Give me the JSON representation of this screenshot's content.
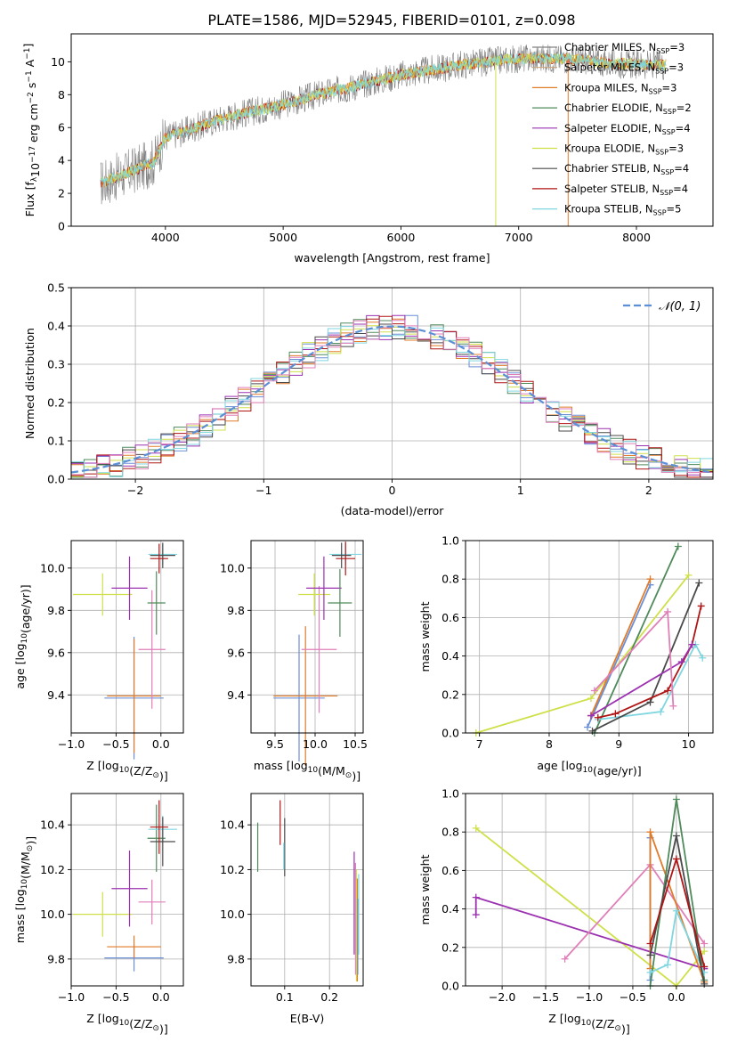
{
  "figure": {
    "title": "PLATE=1586, MJD=52945, FIBERID=0101, z=0.098"
  },
  "colors": {
    "Chabrier MILES": "#6a8fd6",
    "Salpeter MILES": "#c9a57a",
    "Kroupa MILES": "#e07b2a",
    "Chabrier ELODIE": "#4f8a5b",
    "Salpeter ELODIE": "#9b30b0",
    "Kroupa ELODIE": "#cfe04a",
    "Chabrier STELIB": "#4a4a4a",
    "Salpeter STELIB": "#b01515",
    "Kroupa STELIB": "#7fd6e0",
    "pink": "#e07fb8",
    "data": "#808080",
    "grid": "#b0b0b0"
  },
  "chart_data": [
    {
      "id": "spectrum",
      "type": "line",
      "title": "PLATE=1586, MJD=52945, FIBERID=0101, z=0.098",
      "xlabel": "wavelength [Angstrom, rest frame]",
      "ylabel_parts": [
        "Flux [f",
        "λ",
        "10",
        "−17",
        " erg cm",
        "−2",
        " s",
        "−1",
        " A",
        "−1",
        "]"
      ],
      "xlim": [
        3200,
        8650
      ],
      "ylim": [
        0,
        11.7
      ],
      "xticks": [
        4000,
        5000,
        6000,
        7000,
        8000
      ],
      "yticks": [
        0,
        2,
        4,
        6,
        8,
        10
      ],
      "grid": false,
      "legend_position": "top-right",
      "continuum_knots": [
        [
          3450,
          2.6
        ],
        [
          3700,
          3.3
        ],
        [
          3900,
          3.9
        ],
        [
          4000,
          5.4
        ],
        [
          4300,
          6.1
        ],
        [
          4500,
          6.6
        ],
        [
          5000,
          7.4
        ],
        [
          5300,
          8.0
        ],
        [
          5600,
          8.5
        ],
        [
          6000,
          9.2
        ],
        [
          6500,
          9.8
        ],
        [
          7000,
          10.2
        ],
        [
          7400,
          10.2
        ],
        [
          7800,
          9.9
        ],
        [
          8200,
          9.8
        ]
      ],
      "legend": [
        {
          "label": "Chabrier MILES, N",
          "sub": "SSP",
          "tail": "=3",
          "color": "#808080"
        },
        {
          "label": "Salpeter MILES, N",
          "sub": "SSP",
          "tail": "=3",
          "color": "#c9a57a"
        },
        {
          "label": "Kroupa MILES, N",
          "sub": "SSP",
          "tail": "=3",
          "color": "#e07b2a"
        },
        {
          "label": "Chabrier ELODIE, N",
          "sub": "SSP",
          "tail": "=2",
          "color": "#4f8a5b"
        },
        {
          "label": "Salpeter ELODIE, N",
          "sub": "SSP",
          "tail": "=4",
          "color": "#9b30b0"
        },
        {
          "label": "Kroupa ELODIE, N",
          "sub": "SSP",
          "tail": "=3",
          "color": "#cfe04a"
        },
        {
          "label": "Chabrier STELIB, N",
          "sub": "SSP",
          "tail": "=4",
          "color": "#4a4a4a"
        },
        {
          "label": "Salpeter STELIB, N",
          "sub": "SSP",
          "tail": "=4",
          "color": "#b01515"
        },
        {
          "label": "Kroupa STELIB, N",
          "sub": "SSP",
          "tail": "=5",
          "color": "#7fd6e0"
        }
      ]
    },
    {
      "id": "residuals",
      "type": "line",
      "xlabel": "(data-model)/error",
      "ylabel": "Normed distribution",
      "xlim": [
        -2.5,
        2.5
      ],
      "ylim": [
        0,
        0.5
      ],
      "xticks": [
        -2,
        -1,
        0,
        1,
        2
      ],
      "xtick_labels": [
        "−2",
        "−1",
        "0",
        "1",
        "2"
      ],
      "yticks": [
        0.0,
        0.1,
        0.2,
        0.3,
        0.4,
        0.5
      ],
      "ytick_labels": [
        "0.0",
        "0.1",
        "0.2",
        "0.3",
        "0.4",
        "0.5"
      ],
      "grid": true,
      "legend_position": "top-right",
      "legend_label": "𝒩(0, 1)",
      "bin_width": 0.1,
      "series_colors": [
        "#6a8fd6",
        "#e07b2a",
        "#4f8a5b",
        "#9b30b0",
        "#cfe04a",
        "#4a4a4a",
        "#b01515",
        "#7fd6e0",
        "#e07fb8"
      ],
      "gaussian_color": "#5b8fd6"
    },
    {
      "id": "age_vs_Z",
      "type": "scatter",
      "xlabel_parts": [
        "Z [log",
        "10",
        "(Z/Z",
        "⊙",
        ")]"
      ],
      "ylabel_parts": [
        "age  [log",
        "10",
        "(age/yr)]"
      ],
      "xlim": [
        -1.0,
        0.25
      ],
      "ylim": [
        9.22,
        10.13
      ],
      "xticks": [
        -1.0,
        -0.5,
        0.0
      ],
      "xtick_labels": [
        "−1.0",
        "−0.5",
        "0.0"
      ],
      "yticks": [
        9.4,
        9.6,
        9.8,
        10.0
      ],
      "ytick_labels": [
        "9.4",
        "9.6",
        "9.8",
        "10.0"
      ],
      "grid": true,
      "points": [
        {
          "x": -0.3,
          "y": 9.385,
          "xerr": 0.33,
          "yerr": 0.29,
          "color": "#6a8fd6"
        },
        {
          "x": -0.3,
          "y": 9.395,
          "xerr": 0.3,
          "yerr": 0.27,
          "color": "#e07b2a"
        },
        {
          "x": -0.1,
          "y": 9.615,
          "xerr": 0.15,
          "yerr": 0.28,
          "color": "#e07fb8"
        },
        {
          "x": -0.65,
          "y": 9.875,
          "xerr": 0.33,
          "yerr": 0.1,
          "color": "#cfe04a"
        },
        {
          "x": -0.35,
          "y": 9.905,
          "xerr": 0.2,
          "yerr": 0.15,
          "color": "#9b30b0"
        },
        {
          "x": -0.05,
          "y": 9.835,
          "xerr": 0.1,
          "yerr": 0.15,
          "color": "#4f8a5b"
        },
        {
          "x": 0.02,
          "y": 10.065,
          "xerr": 0.16,
          "yerr": 0.05,
          "color": "#7fd6e0"
        },
        {
          "x": 0.02,
          "y": 10.06,
          "xerr": 0.14,
          "yerr": 0.06,
          "color": "#4a4a4a"
        },
        {
          "x": -0.02,
          "y": 10.045,
          "xerr": 0.1,
          "yerr": 0.07,
          "color": "#b01515"
        }
      ]
    },
    {
      "id": "age_vs_mass",
      "type": "scatter",
      "xlabel_parts": [
        "mass [log",
        "10",
        "(M/M",
        "⊙",
        ")]"
      ],
      "xlim": [
        9.2,
        10.6
      ],
      "ylim": [
        9.22,
        10.13
      ],
      "xticks": [
        9.5,
        10.0,
        10.5
      ],
      "xtick_labels": [
        "9.5",
        "10.0",
        "10.5"
      ],
      "yticks": [
        9.4,
        9.6,
        9.8,
        10.0
      ],
      "ytick_labels": [
        "9.4",
        "9.6",
        "9.8",
        "10.0"
      ],
      "grid": true,
      "points": [
        {
          "x": 9.8,
          "y": 9.385,
          "xerr": 0.32,
          "yerr": 0.3,
          "color": "#6a8fd6"
        },
        {
          "x": 9.88,
          "y": 9.395,
          "xerr": 0.4,
          "yerr": 0.33,
          "color": "#e07b2a"
        },
        {
          "x": 10.05,
          "y": 9.615,
          "xerr": 0.22,
          "yerr": 0.3,
          "color": "#e07fb8"
        },
        {
          "x": 9.99,
          "y": 9.875,
          "xerr": 0.2,
          "yerr": 0.1,
          "color": "#cfe04a"
        },
        {
          "x": 10.11,
          "y": 9.905,
          "xerr": 0.22,
          "yerr": 0.15,
          "color": "#9b30b0"
        },
        {
          "x": 10.31,
          "y": 9.835,
          "xerr": 0.15,
          "yerr": 0.16,
          "color": "#4f8a5b"
        },
        {
          "x": 10.38,
          "y": 10.065,
          "xerr": 0.2,
          "yerr": 0.05,
          "color": "#7fd6e0"
        },
        {
          "x": 10.33,
          "y": 10.06,
          "xerr": 0.12,
          "yerr": 0.06,
          "color": "#4a4a4a"
        },
        {
          "x": 10.38,
          "y": 10.045,
          "xerr": 0.12,
          "yerr": 0.08,
          "color": "#b01515"
        }
      ]
    },
    {
      "id": "massweight_vs_age",
      "type": "line",
      "xlabel_parts": [
        "age  [log",
        "10",
        "(age/yr)]"
      ],
      "ylabel": "mass weight",
      "xlim": [
        6.8,
        10.35
      ],
      "ylim": [
        0,
        1.0
      ],
      "xticks": [
        7,
        8,
        9,
        10
      ],
      "xtick_labels": [
        "7",
        "8",
        "9",
        "10"
      ],
      "yticks": [
        0.0,
        0.2,
        0.4,
        0.6,
        0.8,
        1.0
      ],
      "ytick_labels": [
        "0.0",
        "0.2",
        "0.4",
        "0.6",
        "0.8",
        "1.0"
      ],
      "grid": true,
      "series": [
        {
          "color": "#cfe04a",
          "x": [
            6.95,
            8.6,
            10.0
          ],
          "y": [
            0.0,
            0.18,
            0.82
          ]
        },
        {
          "color": "#6a8fd6",
          "x": [
            8.55,
            9.45
          ],
          "y": [
            0.03,
            0.77
          ]
        },
        {
          "color": "#e07b2a",
          "x": [
            8.6,
            9.45
          ],
          "y": [
            0.09,
            0.8
          ]
        },
        {
          "color": "#4f8a5b",
          "x": [
            8.65,
            9.85
          ],
          "y": [
            0.0,
            0.97
          ]
        },
        {
          "color": "#7fd6e0",
          "x": [
            8.7,
            9.6,
            10.1,
            10.2
          ],
          "y": [
            0.07,
            0.11,
            0.46,
            0.39
          ]
        },
        {
          "color": "#4a4a4a",
          "x": [
            8.62,
            9.45,
            10.15
          ],
          "y": [
            0.01,
            0.16,
            0.78
          ]
        },
        {
          "color": "#b01515",
          "x": [
            8.7,
            8.95,
            9.7,
            10.05,
            10.18
          ],
          "y": [
            0.08,
            0.1,
            0.22,
            0.46,
            0.66
          ]
        },
        {
          "color": "#9b30b0",
          "x": [
            8.6,
            9.9,
            10.05
          ],
          "y": [
            0.09,
            0.37,
            0.46
          ]
        },
        {
          "color": "#e07fb8",
          "x": [
            8.65,
            9.7,
            9.78
          ],
          "y": [
            0.22,
            0.63,
            0.14
          ]
        }
      ]
    },
    {
      "id": "mass_vs_Z",
      "type": "scatter",
      "xlabel_parts": [
        "Z [log",
        "10",
        "(Z/Z",
        "⊙",
        ")]"
      ],
      "ylabel_parts": [
        "mass [log",
        "10",
        "(M/M",
        "⊙",
        ")]"
      ],
      "xlim": [
        -1.0,
        0.25
      ],
      "ylim": [
        9.68,
        10.54
      ],
      "xticks": [
        -1.0,
        -0.5,
        0.0
      ],
      "xtick_labels": [
        "−1.0",
        "−0.5",
        "0.0"
      ],
      "yticks": [
        9.8,
        10.0,
        10.2,
        10.4
      ],
      "ytick_labels": [
        "9.8",
        "10.0",
        "10.2",
        "10.4"
      ],
      "grid": true,
      "points": [
        {
          "x": -0.3,
          "y": 9.805,
          "xerr": 0.33,
          "yerr": 0.06,
          "color": "#6a8fd6"
        },
        {
          "x": -0.3,
          "y": 9.855,
          "xerr": 0.3,
          "yerr": 0.05,
          "color": "#e07b2a"
        },
        {
          "x": -0.1,
          "y": 10.055,
          "xerr": 0.15,
          "yerr": 0.1,
          "color": "#e07fb8"
        },
        {
          "x": -0.65,
          "y": 10.0,
          "xerr": 0.33,
          "yerr": 0.1,
          "color": "#cfe04a"
        },
        {
          "x": -0.35,
          "y": 10.115,
          "xerr": 0.2,
          "yerr": 0.17,
          "color": "#9b30b0"
        },
        {
          "x": -0.05,
          "y": 10.34,
          "xerr": 0.1,
          "yerr": 0.15,
          "color": "#4f8a5b"
        },
        {
          "x": 0.02,
          "y": 10.38,
          "xerr": 0.16,
          "yerr": 0.06,
          "color": "#7fd6e0"
        },
        {
          "x": 0.02,
          "y": 10.325,
          "xerr": 0.14,
          "yerr": 0.11,
          "color": "#4a4a4a"
        },
        {
          "x": -0.02,
          "y": 10.39,
          "xerr": 0.1,
          "yerr": 0.12,
          "color": "#b01515"
        }
      ]
    },
    {
      "id": "mass_vs_ebv",
      "type": "scatter",
      "xlabel": "E(B-V)",
      "xlim": [
        0.025,
        0.275
      ],
      "ylim": [
        9.68,
        10.54
      ],
      "xticks": [
        0.1,
        0.2
      ],
      "xtick_labels": [
        "0.1",
        "0.2"
      ],
      "yticks": [
        9.8,
        10.0,
        10.2,
        10.4
      ],
      "ytick_labels": [
        "9.8",
        "10.0",
        "10.2",
        "10.4"
      ],
      "grid": true,
      "points": [
        {
          "x": 0.04,
          "y": 10.3,
          "yerr": 0.11,
          "color": "#4f8a5b"
        },
        {
          "x": 0.09,
          "y": 10.41,
          "yerr": 0.1,
          "color": "#b01515"
        },
        {
          "x": 0.1,
          "y": 10.3,
          "yerr": 0.13,
          "color": "#4a4a4a"
        },
        {
          "x": 0.098,
          "y": 10.26,
          "yerr": 0.06,
          "color": "#7fd6e0"
        },
        {
          "x": 0.255,
          "y": 10.05,
          "yerr": 0.23,
          "color": "#9b30b0"
        },
        {
          "x": 0.258,
          "y": 9.98,
          "yerr": 0.25,
          "color": "#e07fb8"
        },
        {
          "x": 0.26,
          "y": 9.95,
          "yerr": 0.25,
          "color": "#cfe04a"
        },
        {
          "x": 0.262,
          "y": 9.93,
          "yerr": 0.23,
          "color": "#e07b2a"
        },
        {
          "x": 0.263,
          "y": 9.9,
          "yerr": 0.17,
          "color": "#6a8fd6"
        },
        {
          "x": 0.265,
          "y": 10.0,
          "yerr": 0.18,
          "color": "#7fd6e0"
        }
      ]
    },
    {
      "id": "massweight_vs_Z",
      "type": "line",
      "xlabel_parts": [
        "Z [log",
        "10",
        "(Z/Z",
        "⊙",
        ")]"
      ],
      "ylabel": "mass weight",
      "xlim": [
        -2.42,
        0.42
      ],
      "ylim": [
        0,
        1.0
      ],
      "xticks": [
        -2.0,
        -1.5,
        -1.0,
        -0.5,
        0.0
      ],
      "xtick_labels": [
        "−2.0",
        "−1.5",
        "−1.0",
        "−0.5",
        "0.0"
      ],
      "yticks": [
        0.0,
        0.2,
        0.4,
        0.6,
        0.8,
        1.0
      ],
      "ytick_labels": [
        "0.0",
        "0.2",
        "0.4",
        "0.6",
        "0.8",
        "1.0"
      ],
      "grid": true,
      "series": [
        {
          "color": "#cfe04a",
          "x": [
            -2.3,
            0.0,
            0.32
          ],
          "y": [
            0.82,
            0.0,
            0.18
          ]
        },
        {
          "color": "#9b30b0",
          "x": [
            -2.3,
            -2.3,
            0.32,
            0.32
          ],
          "y": [
            0.37,
            0.46,
            0.09,
            0.09
          ]
        },
        {
          "color": "#e07fb8",
          "x": [
            -1.28,
            -0.3,
            0.32
          ],
          "y": [
            0.14,
            0.63,
            0.22
          ]
        },
        {
          "color": "#6a8fd6",
          "x": [
            -0.3,
            -0.3
          ],
          "y": [
            0.03,
            0.77
          ]
        },
        {
          "color": "#e07b2a",
          "x": [
            -0.3,
            -0.3,
            0.32
          ],
          "y": [
            0.09,
            0.8,
            0.02
          ]
        },
        {
          "color": "#4f8a5b",
          "x": [
            -0.3,
            0.0,
            0.32
          ],
          "y": [
            0.0,
            0.97,
            0.03
          ]
        },
        {
          "color": "#7fd6e0",
          "x": [
            -0.3,
            -0.1,
            0.0,
            0.32
          ],
          "y": [
            0.07,
            0.11,
            0.39,
            0.07
          ]
        },
        {
          "color": "#4a4a4a",
          "x": [
            -0.3,
            0.0,
            0.32
          ],
          "y": [
            0.16,
            0.78,
            0.01
          ]
        },
        {
          "color": "#b01515",
          "x": [
            -0.3,
            0.0,
            0.32
          ],
          "y": [
            0.22,
            0.66,
            0.1
          ]
        }
      ]
    }
  ]
}
